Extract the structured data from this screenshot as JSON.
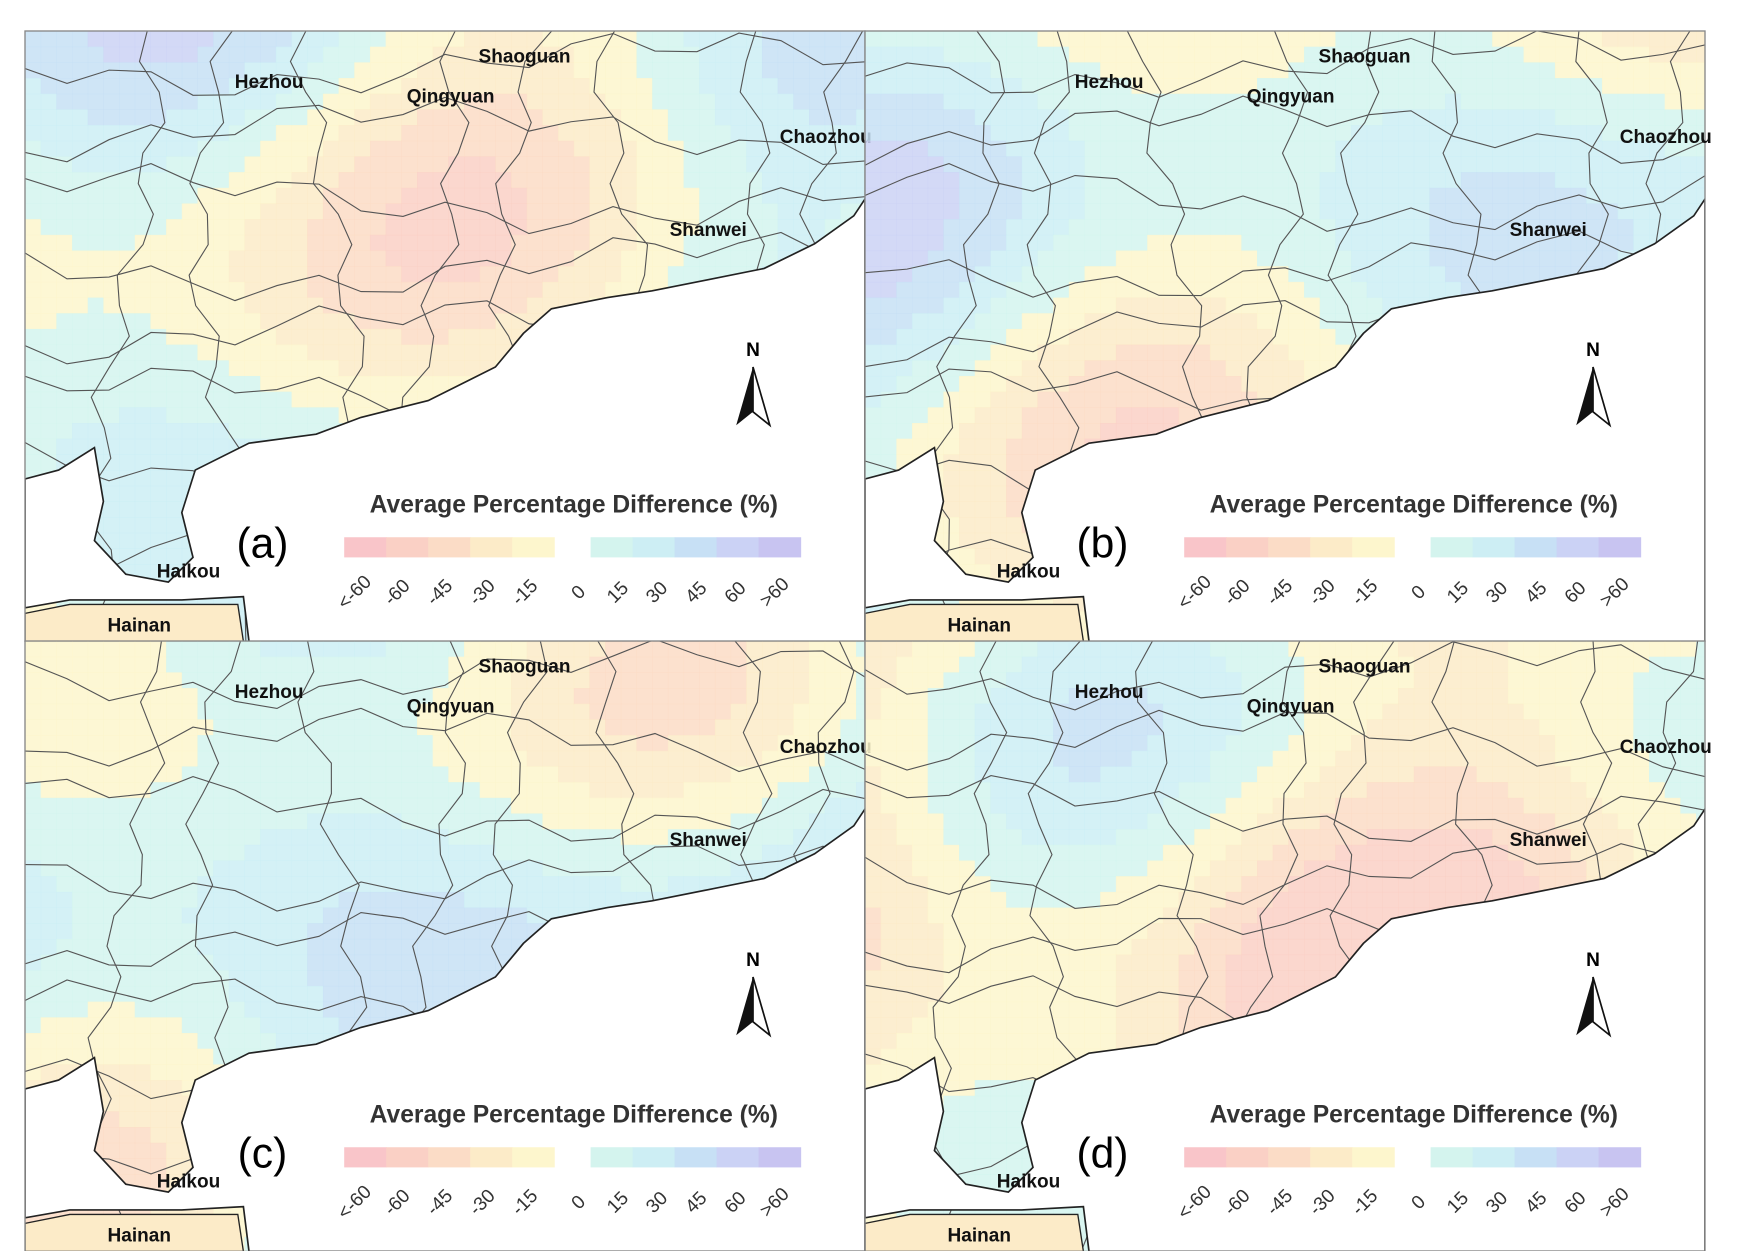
{
  "panels": [
    {
      "label": "(a)",
      "cities": [
        "Hezhou",
        "Qingyuan",
        "Shaoguan",
        "Chaozhou",
        "Shanwei",
        "Haikou",
        "Hainan"
      ],
      "north": "N",
      "legend": {
        "title": "Average Percentage Difference (%)",
        "ticks": [
          "<-60",
          "-60",
          "-45",
          "-30",
          "-15",
          "0",
          "15",
          "30",
          "45",
          "60",
          ">60"
        ]
      }
    },
    {
      "label": "(b)",
      "cities": [
        "Hezhou",
        "Qingyuan",
        "Shaoguan",
        "Chaozhou",
        "Shanwei",
        "Haikou",
        "Hainan"
      ],
      "north": "N",
      "legend": {
        "title": "Average Percentage Difference (%)",
        "ticks": [
          "<-60",
          "-60",
          "-45",
          "-30",
          "-15",
          "0",
          "15",
          "30",
          "45",
          "60",
          ">60"
        ]
      }
    },
    {
      "label": "(c)",
      "cities": [
        "Hezhou",
        "Qingyuan",
        "Shaoguan",
        "Chaozhou",
        "Shanwei",
        "Haikou",
        "Hainan"
      ],
      "north": "N",
      "legend": {
        "title": "Average Percentage Difference (%)",
        "ticks": [
          "<-60",
          "-60",
          "-45",
          "-30",
          "-15",
          "0",
          "15",
          "30",
          "45",
          "60",
          ">60"
        ]
      }
    },
    {
      "label": "(d)",
      "cities": [
        "Hezhou",
        "Qingyuan",
        "Shaoguan",
        "Chaozhou",
        "Shanwei",
        "Haikou",
        "Hainan"
      ],
      "north": "N",
      "legend": {
        "title": "Average Percentage Difference (%)",
        "ticks": [
          "<-60",
          "-60",
          "-45",
          "-30",
          "-15",
          "0",
          "15",
          "30",
          "45",
          "60",
          ">60"
        ]
      }
    }
  ],
  "legend_colors": [
    "#f9c5c9",
    "#fad0c5",
    "#fbdcc6",
    "#fcebc8",
    "#fdf6cd",
    "#d4f4ee",
    "#cdeef4",
    "#c7e0f5",
    "#cbd2f5",
    "#c8c4f1"
  ]
}
